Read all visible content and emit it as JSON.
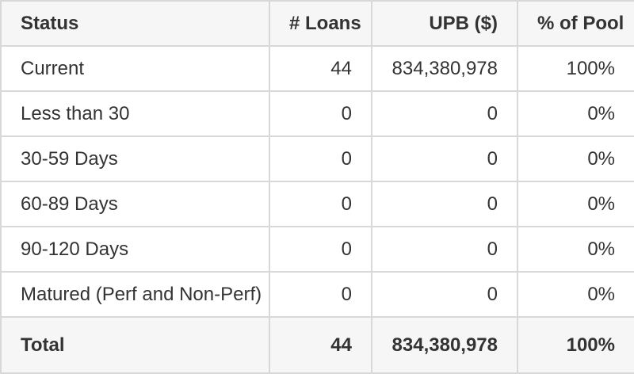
{
  "colors": {
    "header_bg": "#f6f6f6",
    "total_bg": "#f6f6f6",
    "row_bg": "#ffffff",
    "border": "#d8d8d8",
    "text": "#333333"
  },
  "chart_data": {
    "type": "table",
    "columns": [
      {
        "label": "Status",
        "align": "left"
      },
      {
        "label": "# Loans",
        "align": "right"
      },
      {
        "label": "UPB ($)",
        "align": "right"
      },
      {
        "label": "% of Pool",
        "align": "right"
      }
    ],
    "rows": [
      [
        "Current",
        "44",
        "834,380,978",
        "100%"
      ],
      [
        "Less than 30",
        "0",
        "0",
        "0%"
      ],
      [
        "30-59 Days",
        "0",
        "0",
        "0%"
      ],
      [
        "60-89 Days",
        "0",
        "0",
        "0%"
      ],
      [
        "90-120 Days",
        "0",
        "0",
        "0%"
      ],
      [
        "Matured (Perf and Non-Perf)",
        "0",
        "0",
        "0%"
      ]
    ],
    "total": [
      "Total",
      "44",
      "834,380,978",
      "100%"
    ]
  }
}
